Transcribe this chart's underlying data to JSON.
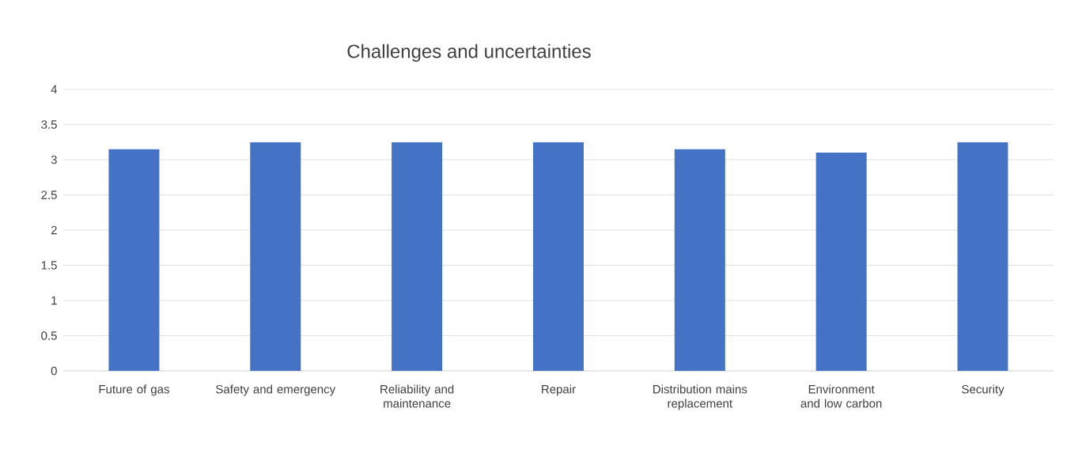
{
  "chart_data": {
    "type": "bar",
    "title": "Challenges and uncertainties",
    "categories": [
      "Future of gas",
      "Safety and emergency",
      "Reliability and maintenance",
      "Repair",
      "Distribution mains replacement",
      "Environment and low carbon",
      "Security"
    ],
    "values": [
      3.15,
      3.25,
      3.25,
      3.25,
      3.15,
      3.1,
      3.25
    ],
    "color": "#4472c4",
    "ylim": [
      0,
      4
    ],
    "yticks": [
      0,
      0.5,
      1,
      1.5,
      2,
      2.5,
      3,
      3.5,
      4
    ],
    "grid": "y"
  }
}
